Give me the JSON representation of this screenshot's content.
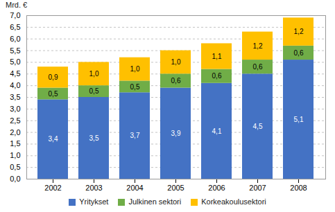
{
  "chart_data": {
    "type": "bar",
    "stacked": true,
    "ylabel": "Mrd. €",
    "categories": [
      "2002",
      "2003",
      "2004",
      "2005",
      "2006",
      "2007",
      "2008"
    ],
    "series": [
      {
        "name": "Yritykset",
        "color": "#4472C4",
        "values": [
          3.4,
          3.5,
          3.7,
          3.9,
          4.1,
          4.5,
          5.1
        ],
        "value_labels": [
          "3,4",
          "3,5",
          "3,7",
          "3,9",
          "4,1",
          "4,5",
          "5,1"
        ]
      },
      {
        "name": "Julkinen sektori",
        "color": "#70AD47",
        "values": [
          0.5,
          0.5,
          0.5,
          0.6,
          0.6,
          0.6,
          0.6
        ],
        "value_labels": [
          "0,5",
          "0,5",
          "0,5",
          "0,6",
          "0,6",
          "0,6",
          "0,6"
        ]
      },
      {
        "name": "Korkeakoulusektori",
        "color": "#FFC000",
        "values": [
          0.9,
          1.0,
          1.0,
          1.0,
          1.1,
          1.2,
          1.2
        ],
        "value_labels": [
          "0,9",
          "1,0",
          "1,0",
          "1,0",
          "1,1",
          "1,2",
          "1,2"
        ]
      }
    ],
    "ylim": [
      0.0,
      7.0
    ],
    "yticks": [
      {
        "value": 0.0,
        "label": "0,0"
      },
      {
        "value": 0.5,
        "label": "0,5"
      },
      {
        "value": 1.0,
        "label": "1,0"
      },
      {
        "value": 1.5,
        "label": "1,5"
      },
      {
        "value": 2.0,
        "label": "2,0"
      },
      {
        "value": 2.5,
        "label": "2,5"
      },
      {
        "value": 3.0,
        "label": "3,0"
      },
      {
        "value": 3.5,
        "label": "3,5"
      },
      {
        "value": 4.0,
        "label": "4,0"
      },
      {
        "value": 4.5,
        "label": "4,5"
      },
      {
        "value": 5.0,
        "label": "5,0"
      },
      {
        "value": 5.5,
        "label": "5,5"
      },
      {
        "value": 6.0,
        "label": "6,0"
      },
      {
        "value": 6.5,
        "label": "6,5"
      },
      {
        "value": 7.0,
        "label": "7,0"
      }
    ],
    "grid": true,
    "data_labels": true,
    "legend": "bottom"
  }
}
